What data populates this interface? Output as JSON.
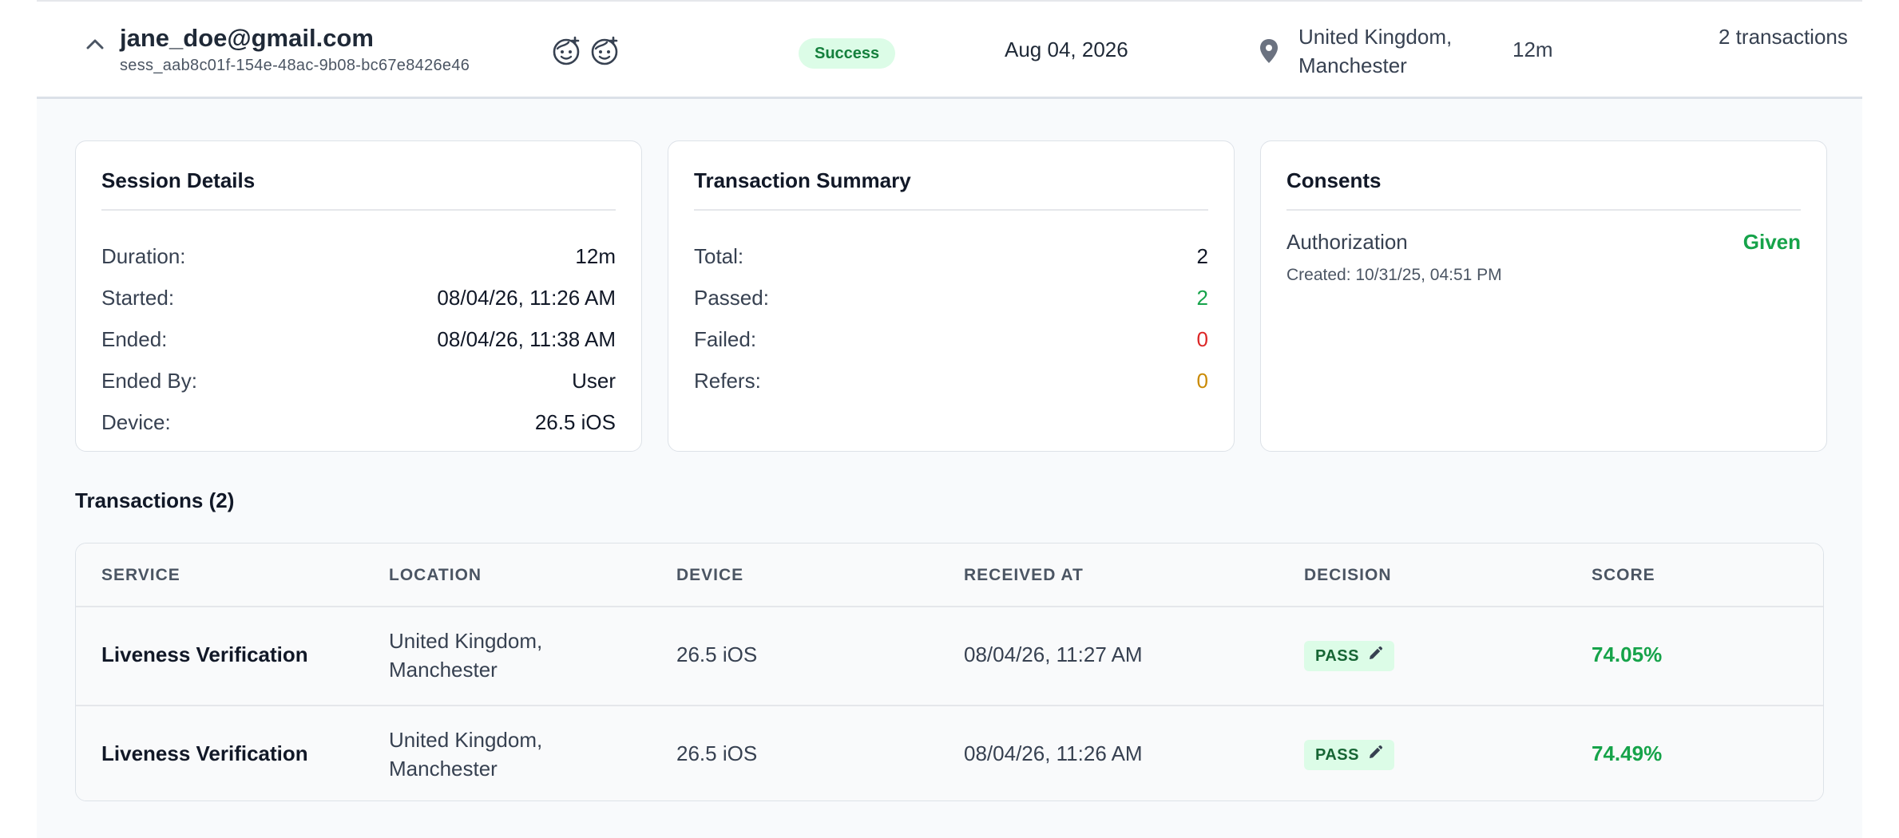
{
  "session": {
    "email": "jane_doe@gmail.com",
    "session_id": "sess_aab8c01f-154e-48ac-9b08-bc67e8426e46",
    "status": "Success",
    "date": "Aug 04, 2026",
    "location": "United Kingdom, Manchester",
    "duration": "12m",
    "transactions": "2 transactions"
  },
  "session_details": {
    "title": "Session Details",
    "rows": [
      {
        "label": "Duration:",
        "value": "12m"
      },
      {
        "label": "Started:",
        "value": "08/04/26, 11:26 AM"
      },
      {
        "label": "Ended:",
        "value": "08/04/26, 11:38 AM"
      },
      {
        "label": "Ended By:",
        "value": "User"
      },
      {
        "label": "Device:",
        "value": "26.5 iOS"
      }
    ]
  },
  "transaction_summary": {
    "title": "Transaction Summary",
    "rows": [
      {
        "label": "Total:",
        "value": "2"
      },
      {
        "label": "Passed:",
        "value": "2"
      },
      {
        "label": "Failed:",
        "value": "0"
      },
      {
        "label": "Refers:",
        "value": "0"
      }
    ]
  },
  "consents": {
    "title": "Consents",
    "name": "Authorization",
    "status": "Given",
    "created": "Created: 10/31/25, 04:51 PM"
  },
  "transactions": {
    "title": "Transactions (2)",
    "headers": [
      "SERVICE",
      "LOCATION",
      "DEVICE",
      "RECEIVED AT",
      "DECISION",
      "SCORE"
    ],
    "rows": [
      {
        "service": "Liveness Verification",
        "location": "United Kingdom, Manchester",
        "device": "26.5 iOS",
        "received_at": "08/04/26, 11:27 AM",
        "decision": "PASS",
        "score": "74.05%"
      },
      {
        "service": "Liveness Verification",
        "location": "United Kingdom, Manchester",
        "device": "26.5 iOS",
        "received_at": "08/04/26, 11:26 AM",
        "decision": "PASS",
        "score": "74.49%"
      }
    ]
  },
  "icons": {
    "collapse": "chevron-up-icon",
    "liveness_1": "face-check-icon",
    "liveness_2": "face-check-icon",
    "location": "map-pin-icon",
    "edit": "pencil-icon"
  },
  "colors": {
    "success_bg": "#dcfce7",
    "success_text": "#16a34a",
    "fail_text": "#dc2626",
    "refer_text": "#ca8a04"
  }
}
